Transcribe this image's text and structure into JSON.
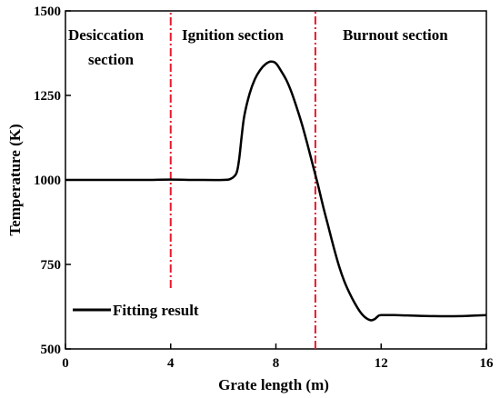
{
  "chart_data": {
    "type": "line",
    "xlabel": "Grate length (m)",
    "ylabel": "Temperature  (K)",
    "xlim": [
      0,
      16
    ],
    "ylim": [
      500,
      1500
    ],
    "xticks": [
      0,
      4,
      8,
      12,
      16
    ],
    "yticks": [
      500,
      750,
      1000,
      1250,
      1500
    ],
    "grid": false,
    "legend_position": "bottom-left",
    "series": [
      {
        "name": "Fitting result",
        "color": "#000000",
        "x": [
          0,
          1,
          2,
          3,
          4,
          5,
          6,
          6.3,
          6.5,
          6.6,
          6.7,
          6.8,
          7.0,
          7.2,
          7.4,
          7.6,
          7.8,
          8.0,
          8.2,
          8.4,
          8.6,
          8.8,
          9.0,
          9.2,
          9.4,
          9.6,
          9.8,
          10.0,
          10.2,
          10.4,
          10.6,
          10.8,
          11.0,
          11.2,
          11.4,
          11.6,
          11.75,
          11.9,
          12.0,
          12.5,
          13,
          14,
          15,
          16
        ],
        "y": [
          1000,
          1000,
          1000,
          1000,
          1001,
          1000,
          1000,
          1004,
          1020,
          1060,
          1130,
          1190,
          1255,
          1298,
          1325,
          1342,
          1350,
          1345,
          1322,
          1295,
          1258,
          1212,
          1162,
          1105,
          1045,
          985,
          920,
          860,
          800,
          745,
          700,
          665,
          635,
          610,
          593,
          585,
          588,
          598,
          600,
          600,
          599,
          597,
          597,
          600
        ]
      }
    ],
    "vlines": [
      {
        "x": 4.0,
        "ymin": 680,
        "ymax": 1500,
        "color": "#e8192c",
        "style": "dash-dot"
      },
      {
        "x": 9.5,
        "ymin": 500,
        "ymax": 1500,
        "color": "#e8192c",
        "style": "dash-dot"
      }
    ],
    "annotations": {
      "desiccation_line1": "Desiccation",
      "desiccation_line2": "section",
      "ignition": "Ignition section",
      "burnout": "Burnout section"
    }
  }
}
